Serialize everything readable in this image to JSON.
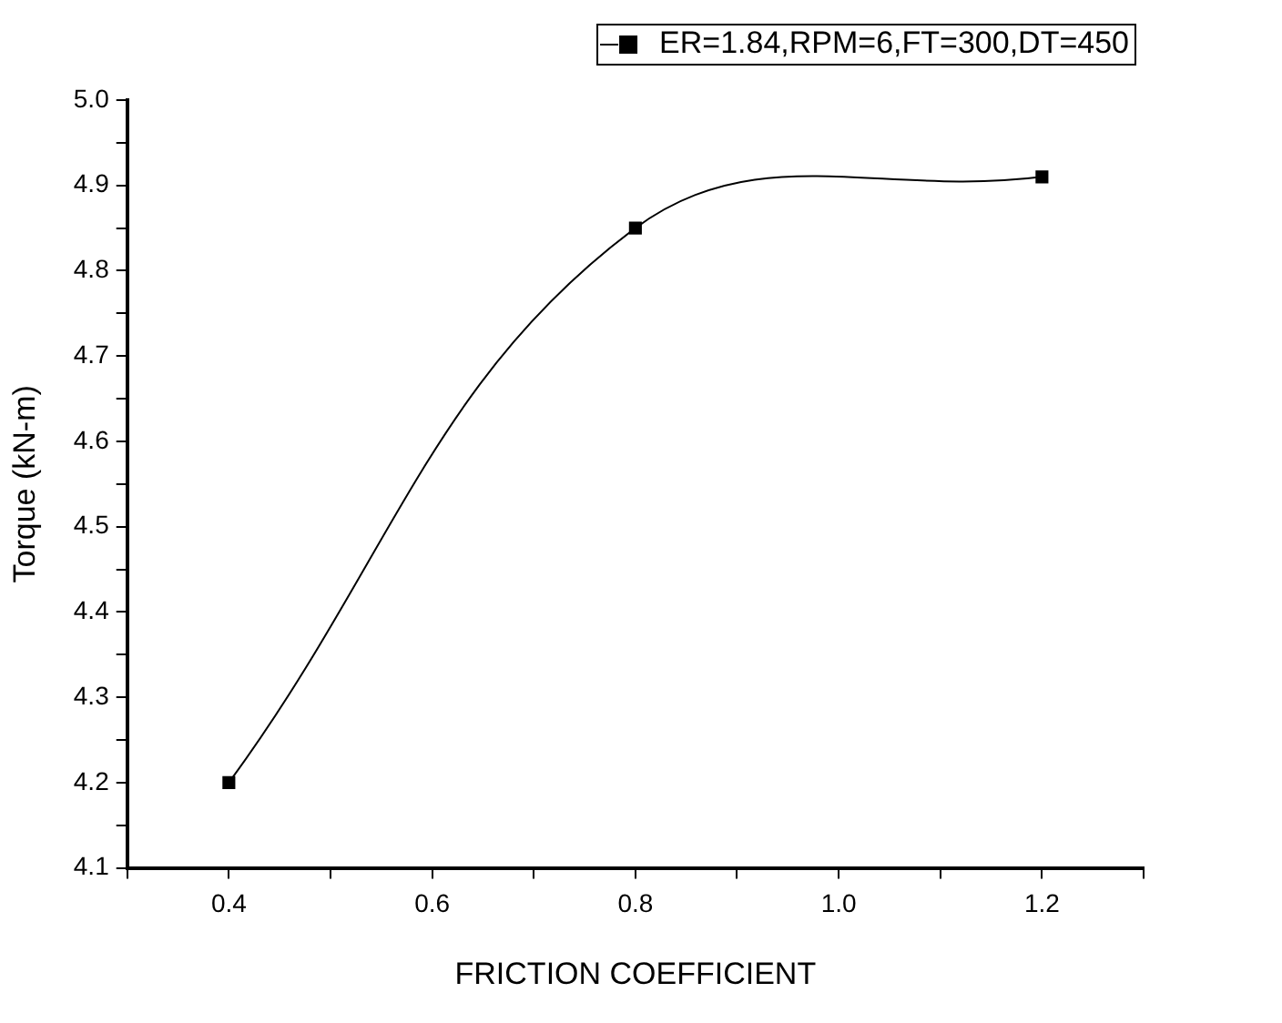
{
  "chart_data": {
    "type": "line",
    "xlabel": "FRICTION COEFFICIENT",
    "ylabel": "Torque (kN-m)",
    "x": [
      0.4,
      0.8,
      1.2
    ],
    "series": [
      {
        "name": "ER=1.84,RPM=6,FT=300,DT=450",
        "color": "#000000",
        "values": [
          4.2,
          4.85,
          4.91
        ]
      }
    ],
    "xlim": [
      0.3,
      1.3
    ],
    "xticks": [
      {
        "value": 0.3,
        "label": null
      },
      0.4,
      {
        "value": 0.5,
        "label": null
      },
      0.6,
      {
        "value": 0.7,
        "label": null
      },
      0.8,
      {
        "value": 0.9,
        "label": null
      },
      {
        "value": 1.0,
        "label": "1.0"
      },
      {
        "value": 1.1,
        "label": null
      },
      1.2,
      {
        "value": 1.3,
        "label": null
      }
    ],
    "ylim": [
      4.1,
      5.0
    ],
    "yticks": [
      4.1,
      {
        "value": 4.15,
        "label": null
      },
      4.2,
      {
        "value": 4.25,
        "label": null
      },
      4.3,
      {
        "value": 4.35,
        "label": null
      },
      4.4,
      {
        "value": 4.45,
        "label": null
      },
      4.5,
      {
        "value": 4.55,
        "label": null
      },
      4.6,
      {
        "value": 4.65,
        "label": null
      },
      4.7,
      {
        "value": 4.75,
        "label": null
      },
      4.8,
      {
        "value": 4.85,
        "label": null
      },
      4.9,
      {
        "value": 4.95,
        "label": null
      },
      {
        "value": 5.0,
        "label": "5.0"
      }
    ],
    "grid": false,
    "legend": "top right",
    "marker": "square",
    "line_style": "solid"
  }
}
